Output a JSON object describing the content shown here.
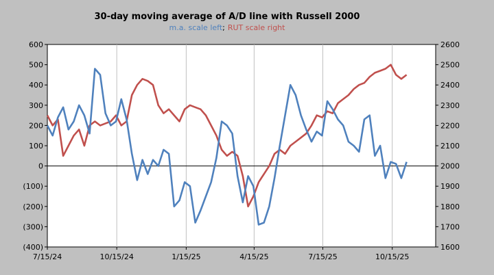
{
  "chart_data": {
    "type": "line",
    "title": "30-day moving average of A/D line with Russell 2000",
    "subtitle": {
      "ma_label": "m.a. scale left",
      "separator": ";",
      "rut_label": "RUT scale right"
    },
    "x_tick_labels": [
      "7/15/24",
      "10/15/24",
      "1/15/25",
      "4/15/25",
      "7/15/25",
      "10/15/25"
    ],
    "y_left": {
      "ylim": [
        -400,
        600
      ],
      "tick_values": [
        600,
        500,
        400,
        300,
        200,
        100,
        0,
        -100,
        -200,
        -300,
        -400
      ],
      "tick_labels": [
        "600",
        "500",
        "400",
        "300",
        "200",
        "100",
        "0",
        "(100)",
        "(200)",
        "(300)",
        "(400)"
      ]
    },
    "y_right": {
      "ylim": [
        1600,
        2600
      ],
      "tick_values": [
        2600,
        2500,
        2400,
        2300,
        2200,
        2100,
        2000,
        1900,
        1800,
        1700,
        1600
      ],
      "tick_labels": [
        "2600",
        "2500",
        "2400",
        "2300",
        "2200",
        "2100",
        "2000",
        "1900",
        "1800",
        "1700",
        "1600"
      ]
    },
    "grid": "vertical",
    "zero_line": true,
    "series": [
      {
        "key": "ma",
        "axis": "left",
        "color": "#4f81bd",
        "x": [
          "7/15/24",
          "7/22/24",
          "7/29/24",
          "8/5/24",
          "8/12/24",
          "8/19/24",
          "8/26/24",
          "9/2/24",
          "9/9/24",
          "9/16/24",
          "9/23/24",
          "9/30/24",
          "10/7/24",
          "10/14/24",
          "10/21/24",
          "10/28/24",
          "11/4/24",
          "11/11/24",
          "11/18/24",
          "11/25/24",
          "12/2/24",
          "12/9/24",
          "12/16/24",
          "12/23/24",
          "12/30/24",
          "1/6/25",
          "1/13/25",
          "1/20/25",
          "1/27/25",
          "2/3/25",
          "2/10/25",
          "2/17/25",
          "2/24/25",
          "3/3/25",
          "3/10/25",
          "3/17/25",
          "3/24/25",
          "3/31/25",
          "4/7/25",
          "4/14/25",
          "4/21/25",
          "4/28/25",
          "5/5/25",
          "5/12/25",
          "5/19/25",
          "5/26/25",
          "6/2/25",
          "6/9/25",
          "6/16/25",
          "6/23/25",
          "6/30/25",
          "7/7/25",
          "7/14/25",
          "7/21/25",
          "7/28/25",
          "8/4/25",
          "8/11/25",
          "8/18/25",
          "8/25/25",
          "9/1/25",
          "9/8/25",
          "9/15/25",
          "9/22/25",
          "9/29/25",
          "10/6/25",
          "10/13/25",
          "10/20/25",
          "10/27/25",
          "11/3/25"
        ],
        "values": [
          200,
          150,
          240,
          290,
          180,
          220,
          300,
          250,
          160,
          480,
          450,
          260,
          200,
          220,
          330,
          230,
          60,
          -70,
          30,
          -40,
          30,
          0,
          80,
          60,
          -200,
          -170,
          -80,
          -100,
          -280,
          -220,
          -150,
          -80,
          40,
          220,
          200,
          160,
          -50,
          -180,
          -50,
          -100,
          -290,
          -280,
          -200,
          -60,
          100,
          250,
          400,
          350,
          250,
          180,
          120,
          170,
          150,
          320,
          280,
          230,
          200,
          120,
          100,
          70,
          230,
          250,
          50,
          100,
          -60,
          20,
          10,
          -60,
          20
        ]
      },
      {
        "key": "rut",
        "axis": "right",
        "color": "#c0504d",
        "x": [
          "7/15/24",
          "7/22/24",
          "7/29/24",
          "8/5/24",
          "8/12/24",
          "8/19/24",
          "8/26/24",
          "9/2/24",
          "9/9/24",
          "9/16/24",
          "9/23/24",
          "9/30/24",
          "10/7/24",
          "10/14/24",
          "10/21/24",
          "10/28/24",
          "11/4/24",
          "11/11/24",
          "11/18/24",
          "11/25/24",
          "12/2/24",
          "12/9/24",
          "12/16/24",
          "12/23/24",
          "12/30/24",
          "1/6/25",
          "1/13/25",
          "1/20/25",
          "1/27/25",
          "2/3/25",
          "2/10/25",
          "2/17/25",
          "2/24/25",
          "3/3/25",
          "3/10/25",
          "3/17/25",
          "3/24/25",
          "3/31/25",
          "4/7/25",
          "4/14/25",
          "4/21/25",
          "4/28/25",
          "5/5/25",
          "5/12/25",
          "5/19/25",
          "5/26/25",
          "6/2/25",
          "6/9/25",
          "6/16/25",
          "6/23/25",
          "6/30/25",
          "7/7/25",
          "7/14/25",
          "7/21/25",
          "7/28/25",
          "8/4/25",
          "8/11/25",
          "8/18/25",
          "8/25/25",
          "9/1/25",
          "9/8/25",
          "9/15/25",
          "9/22/25",
          "9/29/25",
          "10/6/25",
          "10/13/25",
          "10/20/25",
          "10/27/25",
          "11/3/25"
        ],
        "values": [
          2250,
          2200,
          2230,
          2050,
          2100,
          2150,
          2180,
          2100,
          2200,
          2220,
          2200,
          2210,
          2220,
          2250,
          2200,
          2220,
          2350,
          2400,
          2430,
          2420,
          2400,
          2300,
          2260,
          2280,
          2250,
          2220,
          2280,
          2300,
          2290,
          2280,
          2250,
          2200,
          2150,
          2080,
          2050,
          2070,
          2050,
          1950,
          1800,
          1850,
          1920,
          1960,
          2000,
          2060,
          2080,
          2060,
          2100,
          2120,
          2140,
          2160,
          2200,
          2250,
          2240,
          2270,
          2260,
          2310,
          2330,
          2350,
          2380,
          2400,
          2410,
          2440,
          2460,
          2470,
          2480,
          2500,
          2450,
          2430,
          2450
        ]
      }
    ]
  }
}
